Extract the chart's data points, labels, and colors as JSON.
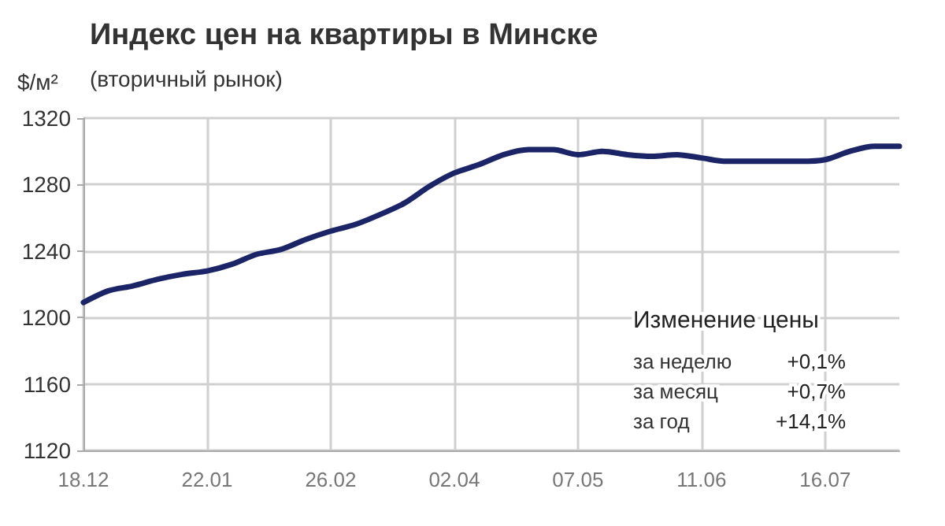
{
  "chart_data": {
    "type": "line",
    "title": "Индекс цен на квартиры в Минске",
    "subtitle": "(вторичный рынок)",
    "ylabel": "$/м²",
    "categories": [
      "18.12",
      null,
      null,
      null,
      null,
      "22.01",
      null,
      null,
      null,
      null,
      "26.02",
      null,
      null,
      null,
      null,
      "02.04",
      null,
      null,
      null,
      null,
      "07.05",
      null,
      null,
      null,
      null,
      "11.06",
      null,
      null,
      null,
      null,
      "16.07",
      null,
      null,
      null
    ],
    "series": [
      {
        "color": "#1b2466",
        "values": [
          1209,
          1216,
          1219,
          1223,
          1226,
          1228,
          1232,
          1238,
          1241,
          1247,
          1252,
          1256,
          1262,
          1269,
          1279,
          1287,
          1292,
          1298,
          1301,
          1301,
          1298,
          1300,
          1298,
          1297,
          1298,
          1296,
          1294,
          1294,
          1294,
          1294,
          1295,
          1300,
          1303,
          1303
        ]
      }
    ],
    "ylim": [
      1120,
      1320
    ],
    "yticks": [
      1120,
      1160,
      1200,
      1240,
      1280,
      1320
    ],
    "grid": true,
    "marker": "none",
    "line_style": "solid",
    "annotations": [
      "Изменение цены",
      "за неделю",
      "+0,1%",
      "за месяц",
      "+0,7%",
      "за год",
      "+14,1%"
    ]
  }
}
